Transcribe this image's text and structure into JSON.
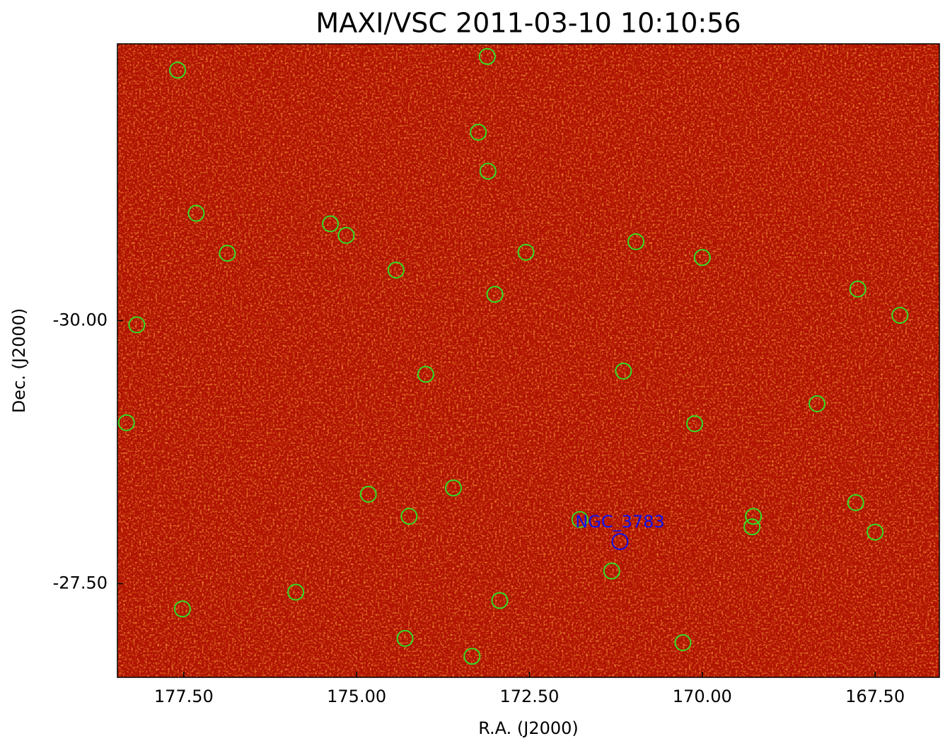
{
  "chart_data": {
    "type": "scatter",
    "title": "MAXI/VSC 2011-03-10 10:10:56",
    "x_label": "R.A. (J2000)",
    "y_label": "Dec. (J2000)",
    "xlim": [
      178.46,
      166.57
    ],
    "ylim": [
      -26.61,
      -32.63
    ],
    "xticks": [
      {
        "value": 177.5,
        "label": "177.50"
      },
      {
        "value": 175,
        "label": "175.00"
      },
      {
        "value": 172.5,
        "label": "172.50"
      },
      {
        "value": 170,
        "label": "170.00"
      },
      {
        "value": 167.5,
        "label": "167.50"
      }
    ],
    "yticks": [
      {
        "value": -30,
        "label": "-30.00"
      },
      {
        "value": -27.5,
        "label": "-27.50"
      }
    ],
    "sources": {
      "color": "#33dd22",
      "x": [
        177.59,
        173.11,
        173.24,
        173.1,
        177.32,
        175.38,
        175.15,
        176.87,
        174.43,
        172.55,
        170.96,
        170.0,
        173.0,
        167.75,
        167.14,
        178.18,
        174.0,
        171.14,
        168.34,
        178.33,
        170.11,
        173.6,
        174.83,
        174.24,
        167.78,
        169.26,
        169.28,
        167.5,
        171.77,
        171.31,
        175.88,
        177.52,
        172.93,
        174.3,
        173.33,
        170.28
      ],
      "y": [
        -32.38,
        -32.51,
        -31.79,
        -31.42,
        -31.02,
        -30.92,
        -30.81,
        -30.64,
        -30.48,
        -30.65,
        -30.75,
        -30.6,
        -30.25,
        -30.3,
        -30.05,
        -29.96,
        -29.49,
        -29.52,
        -29.21,
        -29.03,
        -29.02,
        -28.41,
        -28.35,
        -28.14,
        -28.27,
        -28.14,
        -28.04,
        -27.99,
        -28.11,
        -27.62,
        -27.42,
        -27.26,
        -27.34,
        -26.98,
        -26.81,
        -26.94
      ]
    },
    "target": {
      "label": "NGC_3783",
      "x": 171.19,
      "y": -27.9,
      "color": "#1010ee"
    }
  }
}
